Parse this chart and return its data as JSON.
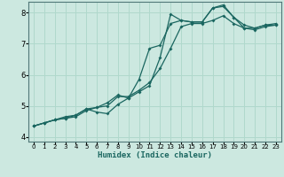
{
  "title": "",
  "xlabel": "Humidex (Indice chaleur)",
  "ylabel": "",
  "bg_color": "#cce8e0",
  "grid_color": "#b0d8cc",
  "line_color": "#1a6660",
  "xlim": [
    -0.5,
    23.5
  ],
  "ylim": [
    3.85,
    8.35
  ],
  "xticks": [
    0,
    1,
    2,
    3,
    4,
    5,
    6,
    7,
    8,
    9,
    10,
    11,
    12,
    13,
    14,
    15,
    16,
    17,
    18,
    19,
    20,
    21,
    22,
    23
  ],
  "yticks": [
    4,
    5,
    6,
    7,
    8
  ],
  "curve1_x": [
    0,
    1,
    2,
    3,
    4,
    5,
    6,
    7,
    8,
    9,
    10,
    11,
    12,
    13,
    14,
    15,
    16,
    17,
    18,
    19,
    20,
    21,
    22,
    23
  ],
  "curve1_y": [
    4.35,
    4.45,
    4.55,
    4.6,
    4.65,
    4.85,
    4.95,
    5.0,
    5.3,
    5.3,
    5.5,
    5.75,
    6.2,
    6.85,
    7.55,
    7.65,
    7.65,
    7.75,
    7.9,
    7.65,
    7.5,
    7.5,
    7.6,
    7.6
  ],
  "curve2_x": [
    0,
    1,
    2,
    3,
    4,
    5,
    6,
    7,
    8,
    9,
    10,
    11,
    12,
    13,
    14,
    15,
    16,
    17,
    18,
    19,
    20,
    21,
    22,
    23
  ],
  "curve2_y": [
    4.35,
    4.45,
    4.55,
    4.6,
    4.7,
    4.9,
    4.8,
    4.75,
    5.05,
    5.25,
    5.45,
    5.65,
    6.55,
    7.95,
    7.75,
    7.7,
    7.7,
    8.15,
    8.2,
    7.85,
    7.5,
    7.45,
    7.55,
    7.6
  ],
  "curve3_x": [
    0,
    1,
    2,
    3,
    4,
    5,
    6,
    7,
    8,
    9,
    10,
    11,
    12,
    13,
    14,
    15,
    16,
    17,
    18,
    19,
    20,
    21,
    22,
    23
  ],
  "curve3_y": [
    4.35,
    4.45,
    4.55,
    4.65,
    4.7,
    4.9,
    4.95,
    5.1,
    5.35,
    5.25,
    5.85,
    6.85,
    6.95,
    7.65,
    7.75,
    7.7,
    7.7,
    8.15,
    8.25,
    7.85,
    7.6,
    7.5,
    7.6,
    7.65
  ]
}
